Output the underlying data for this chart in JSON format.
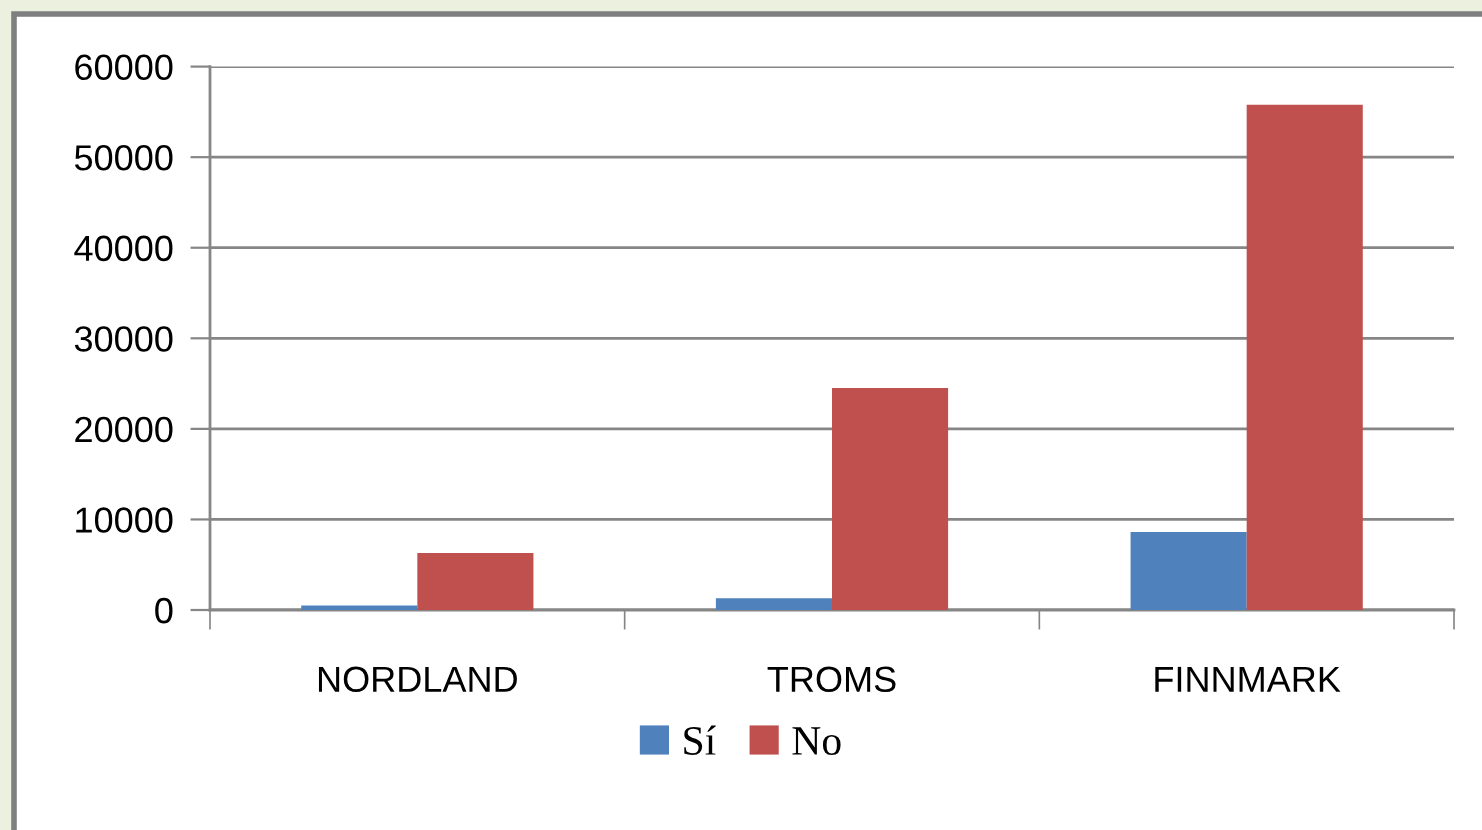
{
  "chart_data": {
    "type": "bar",
    "categories": [
      "NORDLAND",
      "TROMS",
      "FINNMARK"
    ],
    "series": [
      {
        "name": "Sí",
        "color": "#4f81bd",
        "values": [
          500,
          1300,
          8600
        ]
      },
      {
        "name": "No",
        "color": "#c0504d",
        "values": [
          6300,
          24500,
          55800
        ]
      }
    ],
    "ylim": [
      0,
      60000
    ],
    "yticks": [
      0,
      10000,
      20000,
      30000,
      40000,
      50000,
      60000
    ],
    "grid": "y",
    "legend": "bottom"
  }
}
